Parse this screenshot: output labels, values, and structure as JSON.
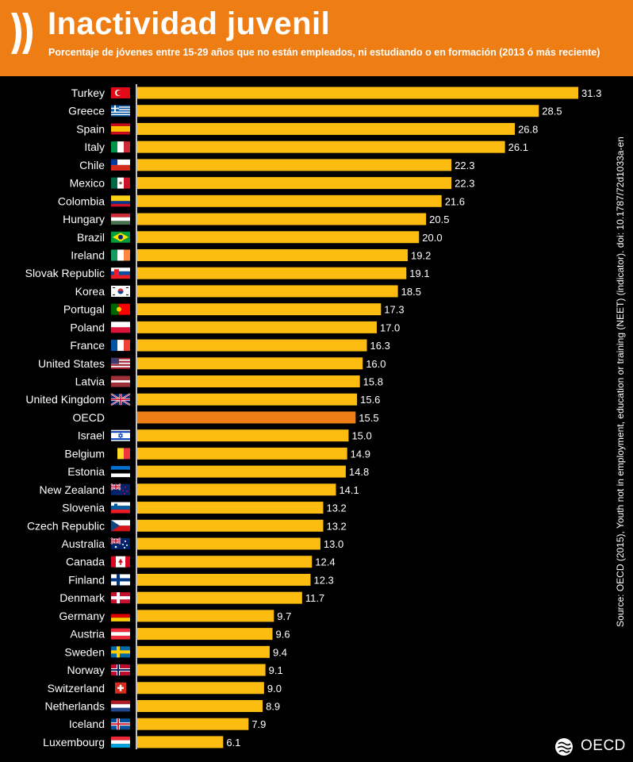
{
  "header": {
    "title": "Inactividad juvenil",
    "subtitle": "Porcentaje de jóvenes entre 15-29 años que no están empleados, ni estudiando o en formación (2013 ó más reciente)"
  },
  "source": "Source: OECD (2015), Youth not in employment, education or training (NEET) (indicator). doi: 10.1787/72d1033a-en",
  "brand": "OECD",
  "colors": {
    "header": "#ee7d14",
    "bar": "#fdbd10",
    "highlight": "#ee7d14",
    "background": "#000000",
    "text": "#ffffff"
  },
  "chart_data": {
    "type": "bar",
    "orientation": "horizontal",
    "categories": [
      "Turkey",
      "Greece",
      "Spain",
      "Italy",
      "Chile",
      "Mexico",
      "Colombia",
      "Hungary",
      "Brazil",
      "Ireland",
      "Slovak Republic",
      "Korea",
      "Portugal",
      "Poland",
      "France",
      "United States",
      "Latvia",
      "United Kingdom",
      "OECD",
      "Israel",
      "Belgium",
      "Estonia",
      "New Zealand",
      "Slovenia",
      "Czech Republic",
      "Australia",
      "Canada",
      "Finland",
      "Denmark",
      "Germany",
      "Austria",
      "Sweden",
      "Norway",
      "Switzerland",
      "Netherlands",
      "Iceland",
      "Luxembourg"
    ],
    "values": [
      31.3,
      28.5,
      26.8,
      26.1,
      22.3,
      22.3,
      21.6,
      20.5,
      20.0,
      19.2,
      19.1,
      18.5,
      17.3,
      17.0,
      16.3,
      16.0,
      15.8,
      15.6,
      15.5,
      15.0,
      14.9,
      14.8,
      14.1,
      13.2,
      13.2,
      13.0,
      12.4,
      12.3,
      11.7,
      9.7,
      9.6,
      9.4,
      9.1,
      9.0,
      8.9,
      7.9,
      6.1
    ],
    "value_labels": [
      "31.3",
      "28.5",
      "26.8",
      "26.1",
      "22.3",
      "22.3",
      "21.6",
      "20.5",
      "20.0",
      "19.2",
      "19.1",
      "18.5",
      "17.3",
      "17.0",
      "16.3",
      "16.0",
      "15.8",
      "15.6",
      "15.5",
      "15.0",
      "14.9",
      "14.8",
      "14.1",
      "13.2",
      "13.2",
      "13.0",
      "12.4",
      "12.3",
      "11.7",
      "9.7",
      "9.6",
      "9.4",
      "9.1",
      "9.0",
      "8.9",
      "7.9",
      "6.1"
    ],
    "highlight": "OECD",
    "xlim": [
      0,
      31.3
    ],
    "grid": false,
    "legend": "none"
  }
}
